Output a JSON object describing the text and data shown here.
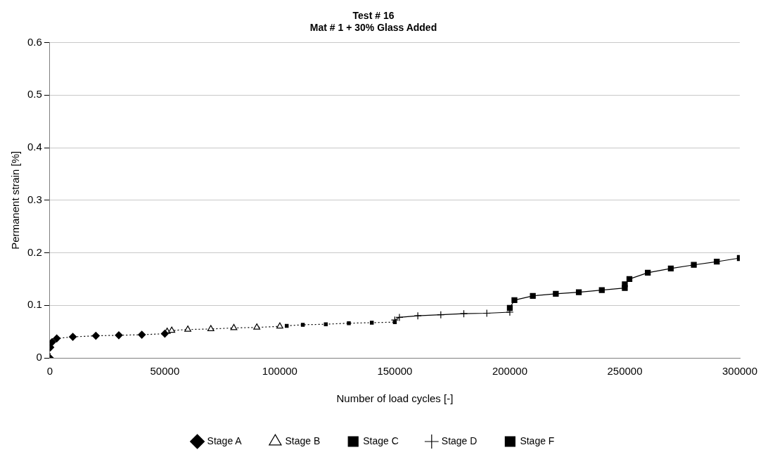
{
  "chart_data": {
    "type": "line",
    "title": "Test # 16",
    "subtitle": "Mat # 1 + 30% Glass Added",
    "xlabel": "Number of load cycles [-]",
    "ylabel": "Permanent strain [%]",
    "xlim": [
      0,
      300000
    ],
    "xticks": [
      0,
      50000,
      100000,
      150000,
      200000,
      250000,
      300000
    ],
    "ylim": [
      0,
      0.6
    ],
    "yticks": [
      0,
      0.1,
      0.2,
      0.3,
      0.4,
      0.5,
      0.6
    ],
    "grid": "y",
    "legend": "bottom",
    "series": [
      {
        "name": "Stage A",
        "color": "#000000",
        "marker": "diamond",
        "line_style": "dotted",
        "x": [
          0,
          200,
          1000,
          3000,
          10000,
          20000,
          30000,
          40000,
          50000
        ],
        "values": [
          0,
          0.02,
          0.03,
          0.037,
          0.04,
          0.042,
          0.043,
          0.044,
          0.046
        ]
      },
      {
        "name": "Stage B",
        "color": "#000000",
        "marker": "triangle",
        "line_style": "dotted",
        "x": [
          51000,
          53000,
          60000,
          70000,
          80000,
          90000,
          100000
        ],
        "values": [
          0.05,
          0.052,
          0.054,
          0.055,
          0.057,
          0.058,
          0.06
        ]
      },
      {
        "name": "Stage C",
        "color": "#000000",
        "marker": "square",
        "line_style": "dotted",
        "x": [
          103000,
          110000,
          120000,
          130000,
          140000,
          150000
        ],
        "values": [
          0.061,
          0.063,
          0.064,
          0.066,
          0.067,
          0.068
        ]
      },
      {
        "name": "Stage D",
        "color": "#000000",
        "marker": "cross",
        "line_style": "solid",
        "x": [
          150000,
          152000,
          160000,
          170000,
          180000,
          190000,
          200000
        ],
        "values": [
          0.072,
          0.077,
          0.08,
          0.082,
          0.084,
          0.085,
          0.087
        ]
      },
      {
        "name": "Stage F",
        "color": "#000000",
        "marker": "square",
        "line_style": "solid",
        "x": [
          200000,
          202000,
          210000,
          220000,
          230000,
          240000,
          250000
        ],
        "values": [
          0.095,
          0.11,
          0.118,
          0.122,
          0.125,
          0.129,
          0.133
        ]
      },
      {
        "color": "#000000",
        "marker": "square",
        "line_style": "solid",
        "x": [
          250000,
          252000,
          260000,
          270000,
          280000,
          290000,
          300000
        ],
        "values": [
          0.14,
          0.15,
          0.162,
          0.17,
          0.177,
          0.183,
          0.19
        ]
      }
    ]
  }
}
